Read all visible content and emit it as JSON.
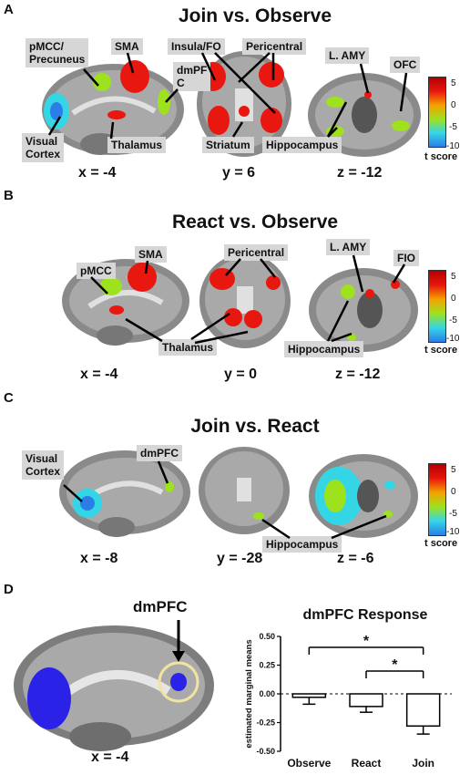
{
  "panels": [
    {
      "letter": "A",
      "title": "Join vs. Observe",
      "labels": [
        "pMCC/\nPrecuneus",
        "SMA",
        "dmPF\nC",
        "Insula/FO",
        "Pericentral",
        "L. AMY",
        "OFC",
        "Visual\nCortex",
        "Thalamus",
        "Striatum",
        "Hippocampus"
      ],
      "coords": [
        "x = -4",
        "y = 6",
        "z = -12"
      ]
    },
    {
      "letter": "B",
      "title": "React vs. Observe",
      "labels": [
        "pMCC",
        "SMA",
        "Pericentral",
        "L. AMY",
        "FIO",
        "Thalamus",
        "Hippocampus"
      ],
      "coords": [
        "x = -4",
        "y = 0",
        "z = -12"
      ]
    },
    {
      "letter": "C",
      "title": "Join vs. React",
      "labels": [
        "Visual\nCortex",
        "dmPFC",
        "Hippocampus"
      ],
      "coords": [
        "x = -8",
        "y = -28",
        "z = -6"
      ]
    },
    {
      "letter": "D",
      "labels": [
        "dmPFC"
      ],
      "coords": [
        "x = -4"
      ]
    }
  ],
  "colorbar": {
    "title": "t score",
    "ticks": [
      "5",
      "0",
      "-5",
      "-10"
    ]
  },
  "colors": {
    "hot": "#e8170f",
    "warm": "#f5a100",
    "green": "#9ee21d",
    "cyan": "#34d6e6",
    "blue": "#2b22e8",
    "label_bg": "#d6d6d6"
  },
  "chart_data": {
    "type": "bar",
    "title": "dmPFC Response",
    "ylabel": "estimated marginal means",
    "categories": [
      "Observe",
      "React",
      "Join"
    ],
    "values": [
      -0.03,
      -0.11,
      -0.28
    ],
    "errors": [
      0.06,
      0.05,
      0.07
    ],
    "ylim": [
      -0.5,
      0.5
    ],
    "yticks": [
      "0.50",
      "0.25",
      "0.00",
      "-0.25",
      "-0.50"
    ],
    "significance": [
      {
        "from": "Observe",
        "to": "Join",
        "label": "*"
      },
      {
        "from": "React",
        "to": "Join",
        "label": "*"
      }
    ]
  }
}
